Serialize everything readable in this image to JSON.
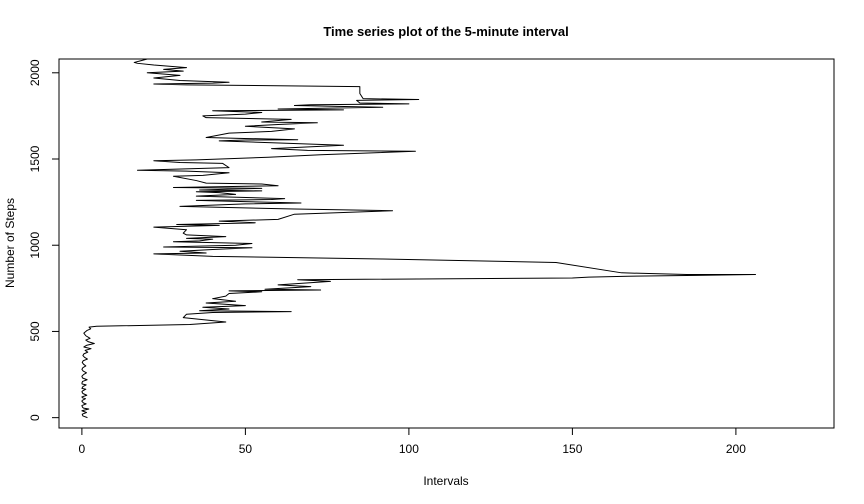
{
  "chart_data": {
    "type": "line",
    "title": "Time series plot of the 5-minute interval",
    "xlabel": "Intervals",
    "ylabel": "Number of Steps",
    "xlim": [
      -7,
      230
    ],
    "ylim": [
      -60,
      2080
    ],
    "xticks": [
      0,
      50,
      100,
      150,
      200
    ],
    "yticks": [
      0,
      500,
      1000,
      1500,
      2000
    ],
    "grid": false,
    "legend": "none",
    "series": [
      {
        "points": [
          [
            1.7,
            0
          ],
          [
            0.3,
            10
          ],
          [
            0.1,
            20
          ],
          [
            1.4,
            30
          ],
          [
            0,
            40
          ],
          [
            2.1,
            50
          ],
          [
            0.5,
            55
          ],
          [
            0.2,
            60
          ],
          [
            0,
            70
          ],
          [
            1.3,
            80
          ],
          [
            0.5,
            85
          ],
          [
            0,
            95
          ],
          [
            0.1,
            100
          ],
          [
            1.1,
            110
          ],
          [
            0.2,
            115
          ],
          [
            0,
            120
          ],
          [
            1.5,
            130
          ],
          [
            0.3,
            140
          ],
          [
            0,
            150
          ],
          [
            0.2,
            155
          ],
          [
            1.2,
            165
          ],
          [
            0,
            170
          ],
          [
            0.3,
            180
          ],
          [
            1.3,
            190
          ],
          [
            0.1,
            195
          ],
          [
            0,
            200
          ],
          [
            0.2,
            210
          ],
          [
            1.6,
            220
          ],
          [
            0.2,
            230
          ],
          [
            0,
            240
          ],
          [
            0.5,
            250
          ],
          [
            1.4,
            260
          ],
          [
            0.4,
            270
          ],
          [
            0,
            280
          ],
          [
            0.3,
            290
          ],
          [
            1.2,
            300
          ],
          [
            0.5,
            310
          ],
          [
            0.1,
            320
          ],
          [
            0.4,
            330
          ],
          [
            1.7,
            340
          ],
          [
            0.8,
            350
          ],
          [
            0.3,
            360
          ],
          [
            0.6,
            370
          ],
          [
            1.8,
            380
          ],
          [
            1,
            390
          ],
          [
            2.8,
            400
          ],
          [
            0.6,
            410
          ],
          [
            1.5,
            420
          ],
          [
            3.8,
            430
          ],
          [
            2,
            440
          ],
          [
            1.2,
            450
          ],
          [
            2.5,
            460
          ],
          [
            1.2,
            475
          ],
          [
            0.6,
            490
          ],
          [
            1.5,
            505
          ],
          [
            2.7,
            515
          ],
          [
            2.2,
            525
          ],
          [
            4.5,
            530
          ],
          [
            33,
            540
          ],
          [
            44,
            555
          ],
          [
            31,
            580
          ],
          [
            32,
            600
          ],
          [
            40,
            610
          ],
          [
            64,
            615
          ],
          [
            36,
            620
          ],
          [
            45,
            630
          ],
          [
            37,
            640
          ],
          [
            50,
            650
          ],
          [
            38,
            665
          ],
          [
            47,
            675
          ],
          [
            40,
            690
          ],
          [
            44,
            705
          ],
          [
            45,
            720
          ],
          [
            55,
            730
          ],
          [
            45,
            735
          ],
          [
            73,
            740
          ],
          [
            56,
            745
          ],
          [
            70,
            760
          ],
          [
            60,
            770
          ],
          [
            76,
            790
          ],
          [
            66,
            800
          ],
          [
            150,
            810
          ],
          [
            155,
            815
          ],
          [
            167,
            820
          ],
          [
            188,
            825
          ],
          [
            206,
            830
          ],
          [
            185,
            830
          ],
          [
            165,
            840
          ],
          [
            145,
            900
          ],
          [
            92,
            920
          ],
          [
            58,
            930
          ],
          [
            40,
            935
          ],
          [
            22,
            950
          ],
          [
            38,
            955
          ],
          [
            30,
            965
          ],
          [
            40,
            975
          ],
          [
            52,
            985
          ],
          [
            25,
            990
          ],
          [
            47,
            1000
          ],
          [
            52,
            1010
          ],
          [
            28,
            1020
          ],
          [
            36,
            1025
          ],
          [
            40,
            1035
          ],
          [
            32,
            1040
          ],
          [
            44,
            1050
          ],
          [
            32,
            1060
          ],
          [
            31,
            1070
          ],
          [
            32,
            1090
          ],
          [
            22,
            1105
          ],
          [
            42,
            1115
          ],
          [
            29,
            1120
          ],
          [
            53,
            1130
          ],
          [
            42,
            1140
          ],
          [
            60,
            1150
          ],
          [
            65,
            1180
          ],
          [
            95,
            1200
          ],
          [
            65,
            1210
          ],
          [
            30,
            1225
          ],
          [
            50,
            1240
          ],
          [
            67,
            1245
          ],
          [
            35,
            1260
          ],
          [
            58,
            1265
          ],
          [
            62,
            1270
          ],
          [
            35,
            1285
          ],
          [
            47,
            1295
          ],
          [
            42,
            1305
          ],
          [
            35,
            1310
          ],
          [
            55,
            1315
          ],
          [
            36,
            1320
          ],
          [
            55,
            1330
          ],
          [
            28,
            1335
          ],
          [
            60,
            1345
          ],
          [
            55,
            1355
          ],
          [
            38,
            1360
          ],
          [
            35,
            1375
          ],
          [
            28,
            1400
          ],
          [
            37,
            1405
          ],
          [
            45,
            1420
          ],
          [
            32,
            1430
          ],
          [
            17,
            1435
          ],
          [
            45,
            1450
          ],
          [
            43,
            1475
          ],
          [
            30,
            1480
          ],
          [
            22,
            1490
          ],
          [
            35,
            1495
          ],
          [
            57,
            1510
          ],
          [
            73,
            1525
          ],
          [
            102,
            1545
          ],
          [
            69,
            1550
          ],
          [
            58,
            1560
          ],
          [
            80,
            1580
          ],
          [
            42,
            1605
          ],
          [
            50,
            1610
          ],
          [
            66,
            1612
          ],
          [
            48,
            1620
          ],
          [
            38,
            1625
          ],
          [
            45,
            1650
          ],
          [
            58,
            1660
          ],
          [
            65,
            1675
          ],
          [
            50,
            1690
          ],
          [
            60,
            1700
          ],
          [
            72,
            1710
          ],
          [
            55,
            1715
          ],
          [
            64,
            1730
          ],
          [
            38,
            1740
          ],
          [
            37,
            1750
          ],
          [
            50,
            1760
          ],
          [
            55,
            1770
          ],
          [
            40,
            1780
          ],
          [
            80,
            1785
          ],
          [
            60,
            1790
          ],
          [
            92,
            1800
          ],
          [
            65,
            1810
          ],
          [
            70,
            1815
          ],
          [
            100,
            1820
          ],
          [
            85,
            1825
          ],
          [
            84,
            1840
          ],
          [
            103,
            1845
          ],
          [
            86,
            1850
          ],
          [
            85,
            1880
          ],
          [
            85,
            1920
          ],
          [
            32,
            1930
          ],
          [
            22,
            1935
          ],
          [
            40,
            1940
          ],
          [
            45,
            1945
          ],
          [
            30,
            1955
          ],
          [
            22,
            1970
          ],
          [
            30,
            1985
          ],
          [
            20,
            2000
          ],
          [
            31,
            2010
          ],
          [
            25,
            2020
          ],
          [
            32,
            2030
          ],
          [
            22,
            2045
          ],
          [
            17,
            2055
          ],
          [
            16,
            2060
          ],
          [
            18,
            2070
          ],
          [
            20,
            2080
          ]
        ]
      }
    ]
  }
}
